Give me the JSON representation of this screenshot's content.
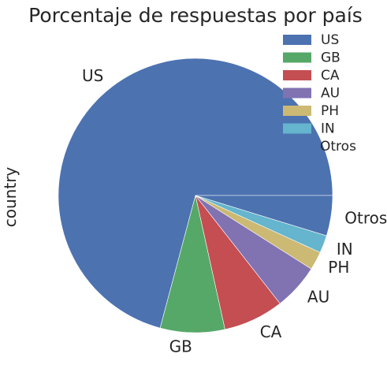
{
  "chart_data": {
    "type": "pie",
    "title": "Porcentaje de respuestas por país",
    "ylabel": "country",
    "legend_position": "top-right",
    "categories": [
      "US",
      "GB",
      "CA",
      "AU",
      "PH",
      "IN",
      "Otros"
    ],
    "values": [
      71.7,
      7.7,
      7.2,
      5.5,
      2.2,
      2.1,
      4.8
    ],
    "colors": [
      "#4c72b0",
      "#55a868",
      "#c44e52",
      "#8172b2",
      "#ccb974",
      "#64b5cd",
      "#4c72b0"
    ]
  }
}
